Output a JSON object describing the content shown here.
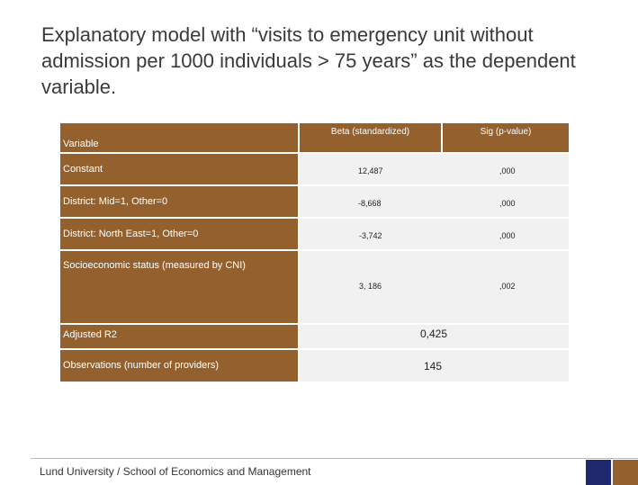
{
  "title": "Explanatory model with “visits to emergency unit without admission per 1000 individuals > 75 years” as the dependent variable.",
  "table": {
    "headers": {
      "variable": "Variable",
      "beta": "Beta (standardized)",
      "sig": "Sig (p-value)"
    },
    "rows": [
      {
        "label": "Constant",
        "beta": "12,487",
        "sig": ",000"
      },
      {
        "label": "District: Mid=1, Other=0",
        "beta": "-8,668",
        "sig": ",000"
      },
      {
        "label": "District: North East=1, Other=0",
        "beta": "-3,742",
        "sig": ",000"
      },
      {
        "label": "Socioeconomic status (measured by CNI)",
        "beta": "3, 186",
        "sig": ",002"
      }
    ],
    "adjusted_r2": {
      "label": "Adjusted R2",
      "value": "0,425"
    },
    "observations": {
      "label": "Observations (number of providers)",
      "value": "145"
    }
  },
  "footer": "Lund University / School of Economics and Management",
  "colors": {
    "brown": "#94612e",
    "navy": "#1f2a6e",
    "light": "#f1f1f1"
  }
}
